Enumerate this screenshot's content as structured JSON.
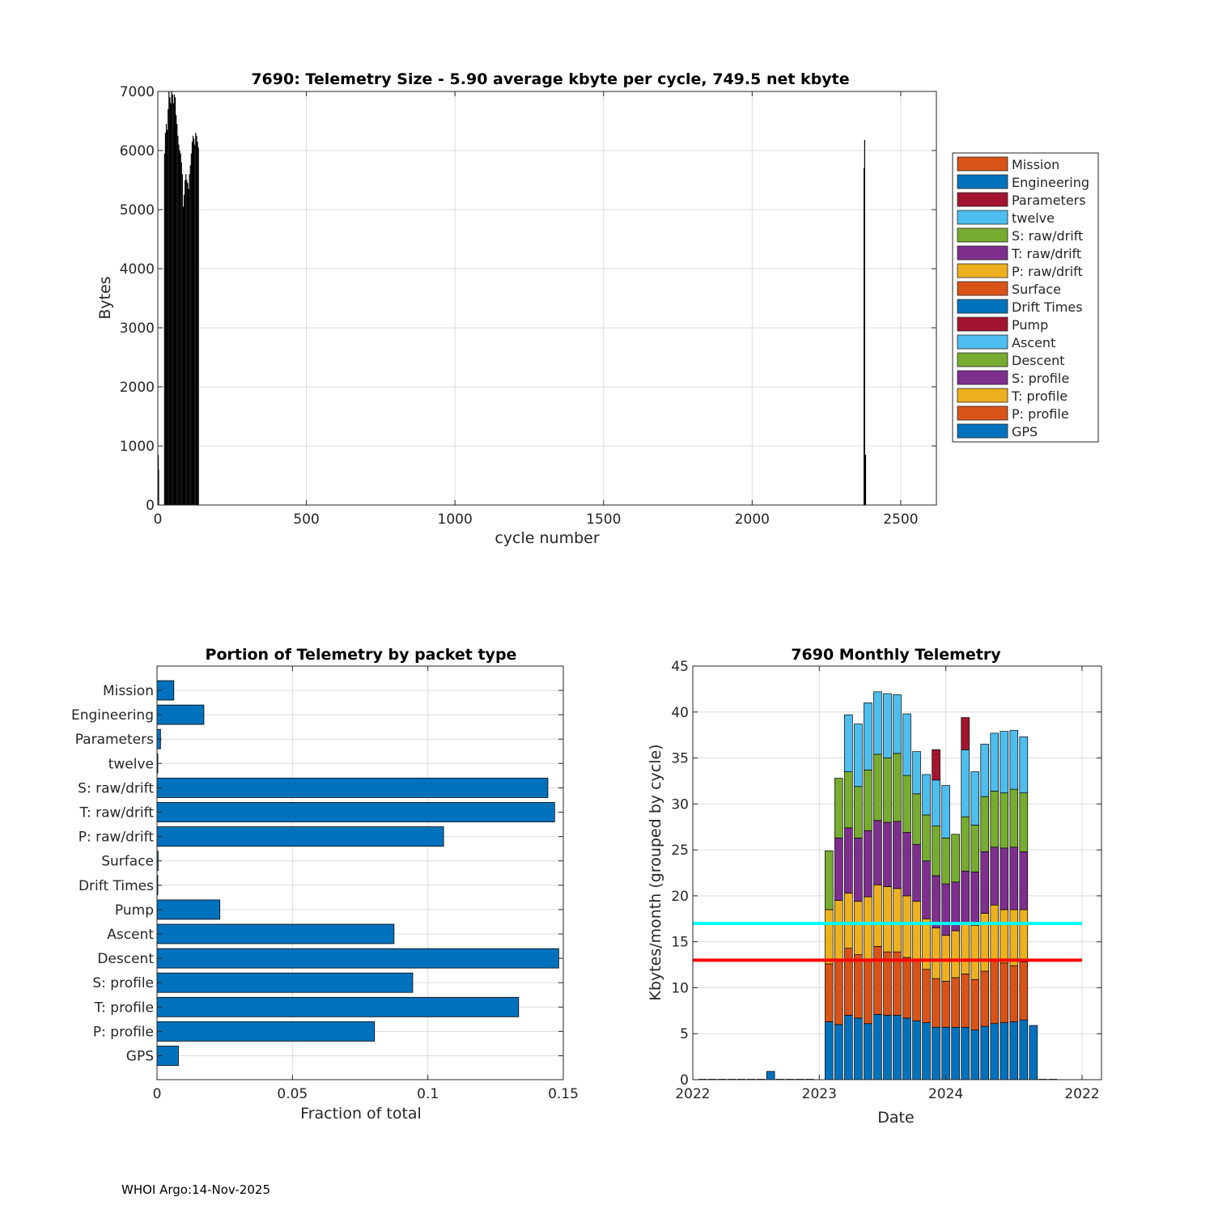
{
  "footer": "WHOI Argo:14-Nov-2025",
  "colors": {
    "blue": "#0072BD",
    "orange": "#D95319",
    "yellow": "#EDB120",
    "purple": "#7E2F8E",
    "green": "#77AC30",
    "cyan": "#4DBEEE",
    "darkred": "#A2142F",
    "line_cyan": "#00FFFF",
    "line_red": "#FF0000",
    "grid": "#dcdcdc"
  },
  "chart_data": [
    {
      "id": "telemetry-size",
      "type": "bar",
      "title": "7690: Telemetry Size - 5.90 average kbyte per cycle,  749.5 net kbyte",
      "xlabel": "cycle number",
      "ylabel": "Bytes",
      "xlim": [
        0,
        2620
      ],
      "ylim": [
        0,
        7000
      ],
      "xticks": [
        0,
        500,
        1000,
        1500,
        2000,
        2500
      ],
      "yticks": [
        0,
        1000,
        2000,
        3000,
        4000,
        5000,
        6000,
        7000
      ],
      "bar_color": "#000000",
      "cycles": [
        [
          0,
          850
        ],
        [
          1,
          600
        ],
        [
          21,
          5950
        ],
        [
          24,
          6300
        ],
        [
          27,
          6450
        ],
        [
          30,
          6350
        ],
        [
          33,
          6700
        ],
        [
          36,
          7000
        ],
        [
          39,
          6900
        ],
        [
          42,
          6800
        ],
        [
          45,
          7000
        ],
        [
          48,
          6950
        ],
        [
          51,
          6800
        ],
        [
          54,
          6950
        ],
        [
          57,
          6900
        ],
        [
          60,
          6600
        ],
        [
          63,
          6450
        ],
        [
          66,
          6250
        ],
        [
          69,
          6100
        ],
        [
          72,
          6000
        ],
        [
          75,
          5950
        ],
        [
          78,
          5800
        ],
        [
          81,
          5600
        ],
        [
          84,
          5050
        ],
        [
          87,
          5250
        ],
        [
          90,
          5500
        ],
        [
          93,
          5600
        ],
        [
          96,
          5500
        ],
        [
          99,
          5450
        ],
        [
          102,
          5350
        ],
        [
          105,
          5600
        ],
        [
          108,
          5750
        ],
        [
          111,
          5950
        ],
        [
          114,
          6150
        ],
        [
          117,
          6250
        ],
        [
          120,
          6200
        ],
        [
          123,
          6100
        ],
        [
          126,
          6300
        ],
        [
          129,
          6250
        ],
        [
          132,
          6150
        ],
        [
          135,
          6050
        ],
        [
          2375,
          5700
        ],
        [
          2377,
          6180
        ],
        [
          2380,
          850
        ]
      ],
      "legend": [
        "Mission",
        "Engineering",
        "Parameters",
        "twelve",
        "S: raw/drift",
        "T: raw/drift",
        "P: raw/drift",
        "Surface",
        "Drift Times",
        "Pump",
        "Ascent",
        "Descent",
        "S: profile",
        "T: profile",
        "P: profile",
        "GPS"
      ],
      "legend_colors": [
        "#D95319",
        "#0072BD",
        "#A2142F",
        "#4DBEEE",
        "#77AC30",
        "#7E2F8E",
        "#EDB120",
        "#D95319",
        "#0072BD",
        "#A2142F",
        "#4DBEEE",
        "#77AC30",
        "#7E2F8E",
        "#EDB120",
        "#D95319",
        "#0072BD"
      ]
    },
    {
      "id": "portion-by-packet",
      "type": "bar",
      "orientation": "horizontal",
      "title": "Portion of Telemetry by packet type",
      "xlabel": "Fraction of total",
      "xlim": [
        0,
        0.15
      ],
      "xticks": [
        0,
        0.05,
        0.1,
        0.15
      ],
      "xtick_labels": [
        "0",
        "0.05",
        "0.1",
        "0.15"
      ],
      "categories": [
        "Mission",
        "Engineering",
        "Parameters",
        "twelve",
        "S: raw/drift",
        "T: raw/drift",
        "P: raw/drift",
        "Surface",
        "Drift Times",
        "Pump",
        "Ascent",
        "Descent",
        "S: profile",
        "T: profile",
        "P: profile",
        "GPS"
      ],
      "values": [
        0.0062,
        0.0173,
        0.0013,
        0.0003,
        0.1443,
        0.1468,
        0.1058,
        0.0004,
        0.0003,
        0.0232,
        0.0875,
        0.1483,
        0.0944,
        0.1335,
        0.0803,
        0.0079
      ],
      "bar_color": "#0072BD"
    },
    {
      "id": "monthly-telemetry",
      "type": "bar",
      "stacked": true,
      "title": "7690 Monthly Telemetry",
      "xlabel": "Date",
      "ylabel": "Kbytes/month (grouped by cycle)",
      "ylim": [
        0,
        45
      ],
      "yticks": [
        0,
        5,
        10,
        15,
        20,
        25,
        30,
        35,
        40,
        45
      ],
      "x_range": [
        0,
        42
      ],
      "xtick_positions": [
        0,
        13,
        26,
        40
      ],
      "xtick_labels": [
        "2022",
        "2023",
        "2024",
        "2022"
      ],
      "hlines": [
        {
          "y": 17,
          "color": "#00FFFF"
        },
        {
          "y": 13,
          "color": "#FF0000"
        }
      ],
      "hline_extent": [
        0,
        40
      ],
      "series_names": [
        "GPS",
        "P: profile",
        "T: profile",
        "S: profile",
        "Descent",
        "Ascent",
        "Pump"
      ],
      "series_colors": [
        "#0072BD",
        "#D95319",
        "#EDB120",
        "#7E2F8E",
        "#77AC30",
        "#4DBEEE",
        "#A2142F"
      ],
      "bars": [
        {
          "x": 1,
          "values": [
            0.05,
            0,
            0,
            0,
            0,
            0,
            0
          ]
        },
        {
          "x": 2,
          "values": [
            0.05,
            0,
            0,
            0,
            0,
            0,
            0
          ]
        },
        {
          "x": 3,
          "values": [
            0.05,
            0,
            0,
            0,
            0,
            0,
            0
          ]
        },
        {
          "x": 4,
          "values": [
            0.05,
            0,
            0,
            0,
            0,
            0,
            0
          ]
        },
        {
          "x": 5,
          "values": [
            0.05,
            0,
            0,
            0,
            0,
            0,
            0
          ]
        },
        {
          "x": 6,
          "values": [
            0.05,
            0,
            0,
            0,
            0,
            0,
            0
          ]
        },
        {
          "x": 7,
          "values": [
            0.05,
            0,
            0,
            0,
            0,
            0,
            0
          ]
        },
        {
          "x": 8,
          "values": [
            0.9,
            0,
            0,
            0,
            0,
            0,
            0
          ]
        },
        {
          "x": 9,
          "values": [
            0.05,
            0,
            0,
            0,
            0,
            0,
            0
          ]
        },
        {
          "x": 10,
          "values": [
            0.05,
            0,
            0,
            0,
            0,
            0,
            0
          ]
        },
        {
          "x": 11,
          "values": [
            0.05,
            0,
            0,
            0,
            0,
            0,
            0
          ]
        },
        {
          "x": 12,
          "values": [
            0.05,
            0,
            0,
            0,
            0,
            0,
            0
          ]
        },
        {
          "x": 14,
          "values": [
            6.3,
            6.3,
            5.9,
            0,
            6.4,
            0,
            0
          ]
        },
        {
          "x": 15,
          "values": [
            6.0,
            7.0,
            6.5,
            6.8,
            6.5,
            0,
            0
          ]
        },
        {
          "x": 16,
          "values": [
            7.0,
            7.3,
            6.0,
            7.1,
            6.1,
            6.2,
            0
          ]
        },
        {
          "x": 17,
          "values": [
            6.7,
            6.9,
            5.8,
            6.9,
            5.6,
            6.8,
            0
          ]
        },
        {
          "x": 18,
          "values": [
            6.1,
            6.9,
            6.9,
            7.2,
            6.6,
            7.3,
            0
          ]
        },
        {
          "x": 19,
          "values": [
            7.1,
            7.4,
            6.7,
            7.0,
            7.2,
            6.8,
            0
          ]
        },
        {
          "x": 20,
          "values": [
            7.0,
            6.9,
            7.1,
            7.0,
            7.0,
            7.0,
            0
          ]
        },
        {
          "x": 21,
          "values": [
            7.0,
            6.9,
            6.9,
            7.3,
            7.4,
            6.4,
            0
          ]
        },
        {
          "x": 22,
          "values": [
            6.7,
            6.6,
            6.7,
            6.9,
            6.2,
            6.7,
            0
          ]
        },
        {
          "x": 23,
          "values": [
            6.4,
            6.5,
            6.5,
            6.2,
            5.5,
            4.6,
            0
          ]
        },
        {
          "x": 24,
          "values": [
            6.2,
            5.8,
            5.5,
            6.3,
            5.0,
            4.4,
            0
          ]
        },
        {
          "x": 25,
          "values": [
            5.7,
            5.3,
            5.5,
            5.7,
            5.4,
            5.0,
            3.3
          ]
        },
        {
          "x": 26,
          "values": [
            5.7,
            5.0,
            5.0,
            5.6,
            5.0,
            5.7,
            0
          ]
        },
        {
          "x": 27,
          "values": [
            5.7,
            5.4,
            5.1,
            5.3,
            5.2,
            0,
            0
          ]
        },
        {
          "x": 28,
          "values": [
            5.7,
            5.8,
            5.5,
            5.7,
            5.9,
            7.3,
            3.5
          ]
        },
        {
          "x": 29,
          "values": [
            5.4,
            5.5,
            5.9,
            5.8,
            5.1,
            5.8,
            0
          ]
        },
        {
          "x": 30,
          "values": [
            5.8,
            6.0,
            6.3,
            6.7,
            6.0,
            5.7,
            0
          ]
        },
        {
          "x": 31,
          "values": [
            6.1,
            6.9,
            6.0,
            6.3,
            6.1,
            6.3,
            0
          ]
        },
        {
          "x": 32,
          "values": [
            6.2,
            6.5,
            5.8,
            6.7,
            6.0,
            6.7,
            0
          ]
        },
        {
          "x": 33,
          "values": [
            6.3,
            6.1,
            6.1,
            6.8,
            6.3,
            6.4,
            0
          ]
        },
        {
          "x": 34,
          "values": [
            6.5,
            6.3,
            5.7,
            6.3,
            6.4,
            6.1,
            0
          ]
        },
        {
          "x": 35,
          "values": [
            5.9,
            0,
            0,
            0,
            0,
            0,
            0
          ]
        },
        {
          "x": 36,
          "values": [
            0.05,
            0,
            0,
            0,
            0,
            0,
            0
          ]
        },
        {
          "x": 37,
          "values": [
            0.05,
            0,
            0,
            0,
            0,
            0,
            0
          ]
        }
      ]
    }
  ]
}
